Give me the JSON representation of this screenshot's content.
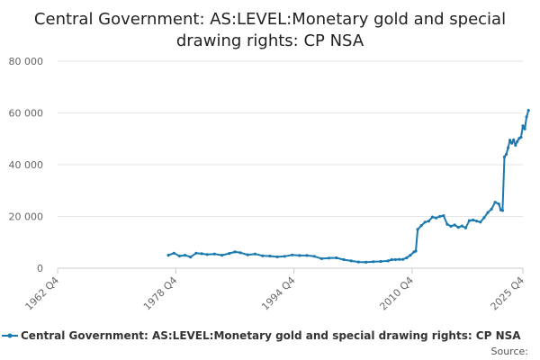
{
  "chart_data": {
    "type": "line",
    "title_lines": [
      "Central Government: AS:LEVEL:Monetary gold and special",
      "drawing rights: CP NSA"
    ],
    "x_ticks": [
      "1962 Q4",
      "1978 Q4",
      "1994 Q4",
      "2010 Q4",
      "2025 Q4"
    ],
    "y_ticks": [
      "0",
      "20 000",
      "40 000",
      "60 000",
      "80 000"
    ],
    "ylim": [
      0,
      80000
    ],
    "grid": "horizontal",
    "legend_position": "bottom",
    "series": [
      {
        "name": "Central Government: AS:LEVEL:Monetary gold and special drawing rights: CP NSA",
        "color": "#1a7ab0",
        "points": [
          [
            1977.75,
            5000
          ],
          [
            1978.5,
            5800
          ],
          [
            1979.25,
            4700
          ],
          [
            1980.0,
            5000
          ],
          [
            1980.75,
            4300
          ],
          [
            1981.5,
            5800
          ],
          [
            1982.25,
            5600
          ],
          [
            1983.0,
            5300
          ],
          [
            1984.0,
            5500
          ],
          [
            1985.0,
            5000
          ],
          [
            1986.0,
            5700
          ],
          [
            1986.75,
            6300
          ],
          [
            1987.5,
            6000
          ],
          [
            1988.5,
            5200
          ],
          [
            1989.5,
            5500
          ],
          [
            1990.5,
            4800
          ],
          [
            1991.5,
            4700
          ],
          [
            1992.5,
            4400
          ],
          [
            1993.5,
            4600
          ],
          [
            1994.5,
            5100
          ],
          [
            1995.5,
            4900
          ],
          [
            1996.5,
            4900
          ],
          [
            1997.5,
            4600
          ],
          [
            1998.5,
            3700
          ],
          [
            1999.5,
            3900
          ],
          [
            2000.5,
            4000
          ],
          [
            2001.5,
            3300
          ],
          [
            2002.5,
            2800
          ],
          [
            2003.5,
            2400
          ],
          [
            2004.5,
            2300
          ],
          [
            2005.5,
            2500
          ],
          [
            2006.5,
            2600
          ],
          [
            2007.5,
            2800
          ],
          [
            2008.0,
            3300
          ],
          [
            2008.5,
            3300
          ],
          [
            2009.0,
            3400
          ],
          [
            2009.5,
            3400
          ],
          [
            2010.0,
            4000
          ],
          [
            2010.5,
            5000
          ],
          [
            2011.0,
            6300
          ],
          [
            2011.25,
            6600
          ],
          [
            2011.5,
            15000
          ],
          [
            2012.0,
            16500
          ],
          [
            2012.5,
            17800
          ],
          [
            2013.0,
            18200
          ],
          [
            2013.5,
            19800
          ],
          [
            2014.0,
            19400
          ],
          [
            2014.5,
            20000
          ],
          [
            2015.0,
            20300
          ],
          [
            2015.5,
            17000
          ],
          [
            2016.0,
            16200
          ],
          [
            2016.5,
            16700
          ],
          [
            2017.0,
            15800
          ],
          [
            2017.5,
            16300
          ],
          [
            2018.0,
            15600
          ],
          [
            2018.5,
            18400
          ],
          [
            2019.0,
            18600
          ],
          [
            2019.5,
            18200
          ],
          [
            2020.0,
            17800
          ],
          [
            2020.5,
            19500
          ],
          [
            2021.0,
            21500
          ],
          [
            2021.5,
            22800
          ],
          [
            2022.0,
            25500
          ],
          [
            2022.5,
            24800
          ],
          [
            2022.75,
            22500
          ],
          [
            2023.0,
            22300
          ],
          [
            2023.25,
            43000
          ],
          [
            2023.5,
            44000
          ],
          [
            2023.75,
            46500
          ],
          [
            2024.0,
            49500
          ],
          [
            2024.25,
            48300
          ],
          [
            2024.5,
            49600
          ],
          [
            2024.75,
            47500
          ],
          [
            2025.0,
            49000
          ],
          [
            2025.25,
            50200
          ],
          [
            2025.5,
            50600
          ],
          [
            2025.75,
            55000
          ],
          [
            2026.0,
            53800
          ],
          [
            2026.25,
            58500
          ],
          [
            2026.5,
            61000
          ]
        ]
      }
    ],
    "source_label": "Source:"
  }
}
